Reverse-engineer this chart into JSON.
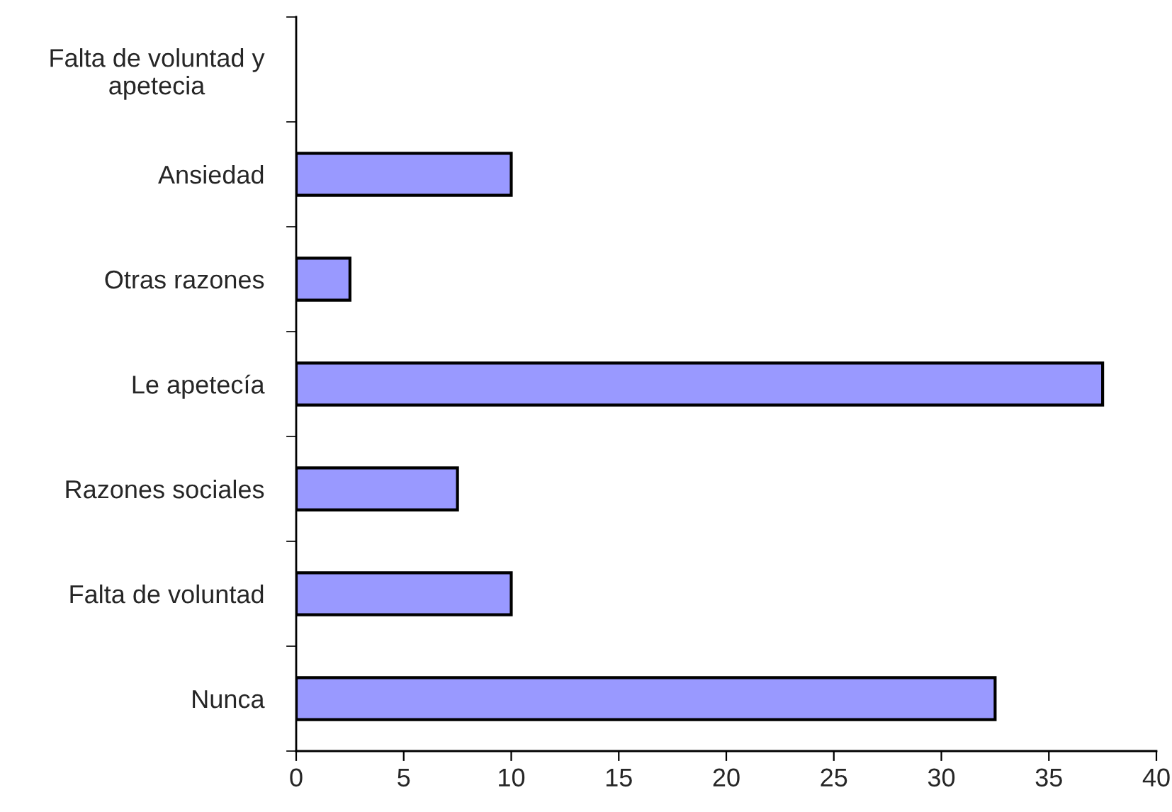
{
  "chart_data": {
    "type": "bar",
    "orientation": "horizontal",
    "categories": [
      "Falta de voluntad y apetecia",
      "Ansiedad",
      "Otras razones",
      "Le apetecía",
      "Razones sociales",
      "Falta de voluntad",
      "Nunca"
    ],
    "values": [
      0,
      10,
      2.5,
      37.5,
      7.5,
      10,
      32.5
    ],
    "color": "#9999ff",
    "xlim": [
      0,
      40
    ],
    "xticks": [
      0,
      5,
      10,
      15,
      20,
      25,
      30,
      35,
      40
    ],
    "grid": false
  }
}
